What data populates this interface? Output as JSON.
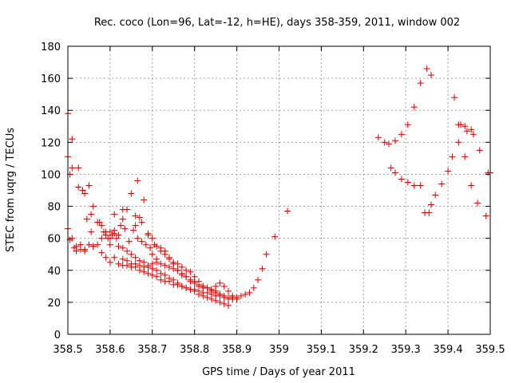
{
  "chart_data": {
    "type": "scatter",
    "title": "Rec. coco (Lon=96, Lat=-12, h=HE), days 358-359, 2011, window 002",
    "xlabel": "GPS time / Days of year 2011",
    "ylabel": "STEC from uqrg / TECUs",
    "xlim": [
      358.5,
      359.5
    ],
    "ylim": [
      0,
      180
    ],
    "xticks": [
      "358.5",
      "358.6",
      "358.7",
      "358.8",
      "358.9",
      "359",
      "359.1",
      "359.2",
      "359.3",
      "359.4",
      "359.5"
    ],
    "yticks": [
      "0",
      "20",
      "40",
      "60",
      "80",
      "100",
      "120",
      "140",
      "160",
      "180"
    ],
    "grid": true,
    "marker": "+",
    "marker_color": "#cc0000",
    "series": [
      {
        "points": [
          [
            358.5,
            138
          ],
          [
            358.5,
            111
          ],
          [
            358.505,
            100
          ],
          [
            358.51,
            122
          ],
          [
            358.51,
            104
          ],
          [
            358.525,
            104
          ],
          [
            358.525,
            92
          ],
          [
            358.535,
            90
          ],
          [
            358.54,
            88
          ],
          [
            358.55,
            93
          ],
          [
            358.555,
            75
          ],
          [
            358.56,
            80
          ],
          [
            358.57,
            70
          ],
          [
            358.58,
            68
          ],
          [
            358.59,
            64
          ],
          [
            358.6,
            64
          ],
          [
            358.61,
            75
          ],
          [
            358.62,
            62
          ],
          [
            358.63,
            78
          ],
          [
            358.64,
            78
          ],
          [
            358.65,
            88
          ],
          [
            358.66,
            74
          ],
          [
            358.665,
            96
          ],
          [
            358.67,
            73
          ],
          [
            358.675,
            70
          ],
          [
            358.68,
            84
          ],
          [
            358.69,
            63
          ],
          [
            358.7,
            60
          ],
          [
            358.705,
            56
          ],
          [
            358.71,
            55
          ],
          [
            358.72,
            54
          ],
          [
            358.73,
            52
          ],
          [
            358.74,
            48
          ],
          [
            358.75,
            44
          ],
          [
            358.76,
            44
          ],
          [
            358.77,
            42
          ],
          [
            358.78,
            40
          ],
          [
            358.79,
            39
          ],
          [
            358.8,
            36
          ],
          [
            358.81,
            33
          ],
          [
            358.82,
            30
          ],
          [
            358.83,
            29
          ],
          [
            358.84,
            28
          ],
          [
            358.85,
            27
          ],
          [
            358.86,
            25
          ],
          [
            358.87,
            24
          ],
          [
            358.88,
            23
          ],
          [
            358.89,
            23
          ],
          [
            358.9,
            23
          ],
          [
            358.91,
            24
          ],
          [
            358.92,
            25
          ],
          [
            358.93,
            26
          ],
          [
            358.94,
            29
          ],
          [
            358.95,
            34
          ],
          [
            358.96,
            41
          ],
          [
            358.97,
            50
          ],
          [
            358.99,
            61
          ],
          [
            359.02,
            77
          ]
        ]
      },
      {
        "points": [
          [
            358.5,
            66
          ],
          [
            358.505,
            59
          ],
          [
            358.51,
            60
          ],
          [
            358.515,
            54
          ],
          [
            358.52,
            55
          ],
          [
            358.53,
            56
          ],
          [
            358.54,
            53
          ],
          [
            358.545,
            72
          ],
          [
            358.55,
            56
          ],
          [
            358.555,
            64
          ],
          [
            358.56,
            55
          ],
          [
            358.57,
            56
          ],
          [
            358.575,
            70
          ],
          [
            358.58,
            60
          ],
          [
            358.585,
            64
          ],
          [
            358.59,
            62
          ],
          [
            358.595,
            60
          ],
          [
            358.6,
            56
          ],
          [
            358.605,
            62
          ],
          [
            358.61,
            63
          ],
          [
            358.615,
            60
          ],
          [
            358.62,
            55
          ],
          [
            358.625,
            68
          ],
          [
            358.63,
            54
          ],
          [
            358.635,
            66
          ],
          [
            358.64,
            52
          ],
          [
            358.645,
            58
          ],
          [
            358.65,
            50
          ],
          [
            358.655,
            65
          ],
          [
            358.66,
            48
          ],
          [
            358.665,
            60
          ],
          [
            358.67,
            46
          ],
          [
            358.675,
            58
          ],
          [
            358.68,
            45
          ],
          [
            358.685,
            56
          ],
          [
            358.69,
            42
          ],
          [
            358.695,
            54
          ],
          [
            358.7,
            41
          ],
          [
            358.71,
            40
          ],
          [
            358.72,
            38
          ],
          [
            358.73,
            37
          ],
          [
            358.74,
            35
          ],
          [
            358.75,
            34
          ],
          [
            358.76,
            32
          ],
          [
            358.77,
            30
          ],
          [
            358.78,
            29
          ],
          [
            358.79,
            28
          ],
          [
            358.8,
            27
          ],
          [
            358.81,
            25
          ],
          [
            358.82,
            24
          ],
          [
            358.83,
            23
          ],
          [
            358.84,
            22
          ],
          [
            358.85,
            21
          ],
          [
            358.86,
            20
          ],
          [
            358.87,
            19
          ],
          [
            358.88,
            18
          ]
        ]
      },
      {
        "points": [
          [
            358.52,
            52
          ],
          [
            358.53,
            53
          ],
          [
            358.54,
            52
          ],
          [
            358.56,
            55
          ],
          [
            358.58,
            51
          ],
          [
            358.59,
            48
          ],
          [
            358.6,
            45
          ],
          [
            358.61,
            48
          ],
          [
            358.62,
            44
          ],
          [
            358.63,
            43
          ],
          [
            358.64,
            43
          ],
          [
            358.65,
            42
          ],
          [
            358.66,
            42
          ],
          [
            358.67,
            40
          ],
          [
            358.68,
            39
          ],
          [
            358.69,
            38
          ],
          [
            358.7,
            37
          ],
          [
            358.71,
            36
          ],
          [
            358.72,
            34
          ],
          [
            358.73,
            33
          ],
          [
            358.74,
            33
          ],
          [
            358.75,
            31
          ],
          [
            358.76,
            31
          ],
          [
            358.77,
            30
          ],
          [
            358.78,
            29
          ],
          [
            358.79,
            28
          ],
          [
            358.8,
            28
          ],
          [
            358.81,
            27
          ],
          [
            358.82,
            26
          ],
          [
            358.83,
            26
          ],
          [
            358.84,
            25
          ],
          [
            358.85,
            24
          ],
          [
            358.86,
            24
          ],
          [
            358.87,
            23
          ],
          [
            358.88,
            22
          ],
          [
            358.89,
            22
          ],
          [
            358.9,
            22
          ]
        ]
      },
      {
        "points": [
          [
            358.63,
            47
          ],
          [
            358.64,
            46
          ],
          [
            358.65,
            44
          ],
          [
            358.66,
            44
          ],
          [
            358.67,
            43
          ],
          [
            358.68,
            42
          ],
          [
            358.69,
            43
          ],
          [
            358.7,
            44
          ],
          [
            358.71,
            45
          ],
          [
            358.72,
            44
          ],
          [
            358.73,
            43
          ],
          [
            358.74,
            42
          ],
          [
            358.75,
            41
          ],
          [
            358.76,
            40
          ],
          [
            358.77,
            38
          ],
          [
            358.78,
            36
          ],
          [
            358.79,
            34
          ],
          [
            358.8,
            33
          ],
          [
            358.81,
            31
          ],
          [
            358.82,
            30
          ],
          [
            358.83,
            29
          ],
          [
            358.84,
            28
          ],
          [
            358.85,
            30
          ],
          [
            358.86,
            32
          ],
          [
            358.87,
            30
          ],
          [
            358.88,
            27
          ],
          [
            358.89,
            24
          ]
        ]
      },
      {
        "points": [
          [
            358.6,
            60
          ],
          [
            358.61,
            65
          ],
          [
            358.63,
            72
          ],
          [
            358.66,
            68
          ],
          [
            358.69,
            62
          ],
          [
            358.7,
            50
          ],
          [
            358.71,
            47
          ],
          [
            358.72,
            52
          ],
          [
            358.73,
            50
          ],
          [
            358.74,
            47
          ],
          [
            358.75,
            45
          ],
          [
            358.76,
            40
          ],
          [
            358.77,
            37
          ],
          [
            358.78,
            36
          ],
          [
            358.79,
            33
          ],
          [
            358.8,
            32
          ],
          [
            358.81,
            30
          ],
          [
            358.82,
            29
          ],
          [
            358.83,
            29
          ],
          [
            358.84,
            27
          ],
          [
            358.85,
            26
          ],
          [
            358.86,
            25
          ]
        ]
      },
      {
        "points": [
          [
            359.235,
            123
          ],
          [
            359.25,
            120
          ],
          [
            359.26,
            119
          ],
          [
            359.275,
            121
          ],
          [
            359.29,
            125
          ],
          [
            359.305,
            131
          ],
          [
            359.32,
            142
          ],
          [
            359.335,
            157
          ],
          [
            359.35,
            166
          ],
          [
            359.36,
            162
          ],
          [
            359.415,
            148
          ],
          [
            359.425,
            131
          ],
          [
            359.43,
            131
          ],
          [
            359.44,
            130
          ],
          [
            359.445,
            127
          ],
          [
            359.455,
            128
          ],
          [
            359.46,
            125
          ],
          [
            359.475,
            115
          ],
          [
            359.495,
            101
          ],
          [
            359.5,
            101
          ]
        ]
      },
      {
        "points": [
          [
            359.265,
            104
          ],
          [
            359.275,
            101
          ],
          [
            359.29,
            97
          ],
          [
            359.305,
            95
          ],
          [
            359.32,
            93
          ],
          [
            359.335,
            93
          ],
          [
            359.345,
            76
          ],
          [
            359.355,
            76
          ],
          [
            359.36,
            81
          ],
          [
            359.37,
            87
          ],
          [
            359.385,
            94
          ],
          [
            359.4,
            102
          ],
          [
            359.41,
            111
          ],
          [
            359.425,
            120
          ],
          [
            359.44,
            111
          ],
          [
            359.455,
            93
          ],
          [
            359.47,
            82
          ],
          [
            359.49,
            74
          ]
        ]
      }
    ]
  }
}
